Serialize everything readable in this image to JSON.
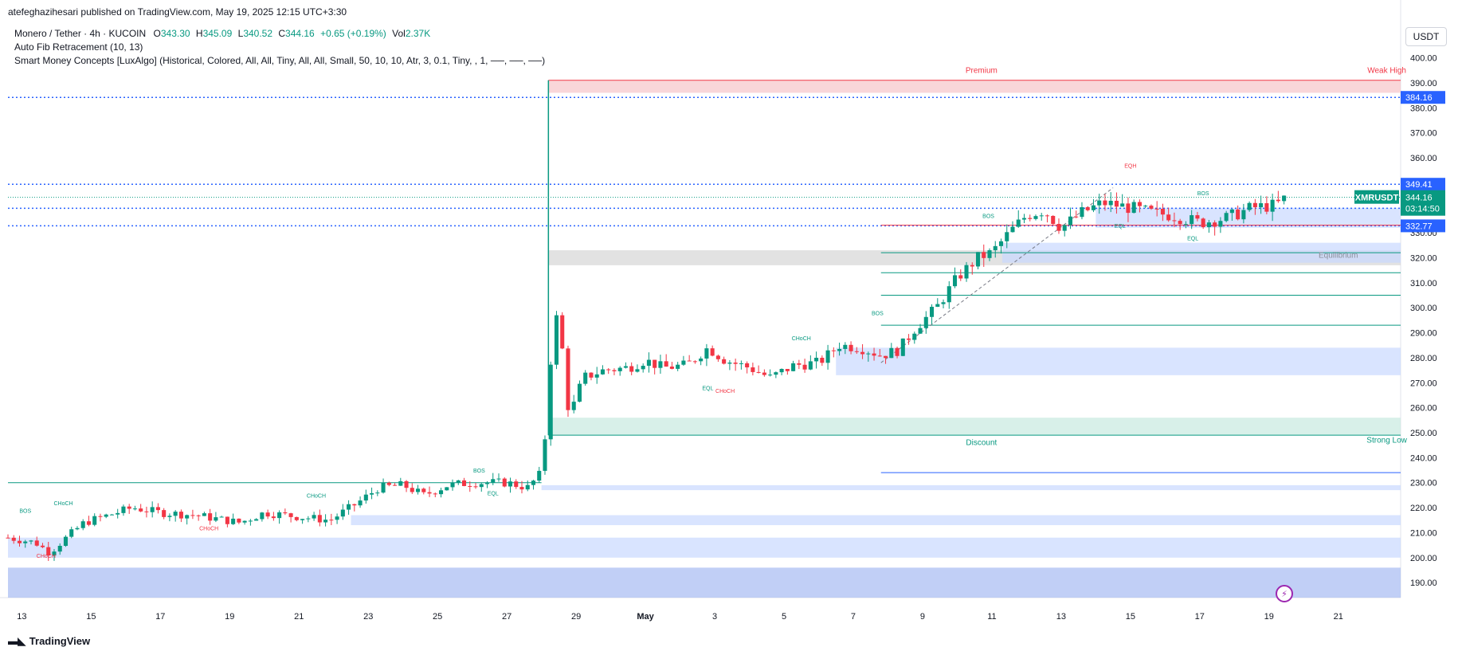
{
  "publisher_line": "atefeghazihesari published on TradingView.com, May 19, 2025 12:15 UTC+3:30",
  "legend": {
    "symbol": "Monero / Tether · 4h · KUCOIN",
    "o_label": "O",
    "o_value": "343.30",
    "h_label": "H",
    "h_value": "345.09",
    "l_label": "L",
    "l_value": "340.52",
    "c_label": "C",
    "c_value": "344.16",
    "change": "+0.65 (+0.19%)",
    "vol_label": "Vol",
    "vol_value": "2.37K",
    "indicator1": "Auto Fib Retracement (10, 13)",
    "indicator2": "Smart Money Concepts [LuxAlgo] (Historical, Colored, All, All, Tiny, All, All, Small, 50, 10, 10, Atr, 3, 0.1, Tiny, , 1, ──, ──, ──)"
  },
  "currency": "USDT",
  "footer_logo": "TradingView",
  "colors": {
    "up": "#089981",
    "down": "#f23645",
    "blue_line": "#2962ff",
    "zone_blue": "#c9d8ff",
    "zone_red": "#f7c5c9",
    "zone_green": "#c8eadf",
    "zone_grey": "#d6d6d6"
  },
  "chart_data": {
    "type": "candlestick",
    "symbol": "XMRUSDT",
    "timeframe": "4h",
    "ylim": [
      184,
      404
    ],
    "y_ticks": [
      190,
      200,
      210,
      220,
      230,
      240,
      250,
      260,
      270,
      280,
      290,
      300,
      310,
      320,
      330,
      340,
      350,
      360,
      370,
      380,
      390,
      400
    ],
    "x_domain": [
      12.6,
      52.8
    ],
    "x_ticks": [
      {
        "x": 13,
        "label": "13"
      },
      {
        "x": 15,
        "label": "15"
      },
      {
        "x": 17,
        "label": "17"
      },
      {
        "x": 19,
        "label": "19"
      },
      {
        "x": 21,
        "label": "21"
      },
      {
        "x": 23,
        "label": "23"
      },
      {
        "x": 25,
        "label": "25"
      },
      {
        "x": 27,
        "label": "27"
      },
      {
        "x": 29,
        "label": "29"
      },
      {
        "x": 31,
        "label": "May"
      },
      {
        "x": 33,
        "label": "3"
      },
      {
        "x": 35,
        "label": "5"
      },
      {
        "x": 37,
        "label": "7"
      },
      {
        "x": 39,
        "label": "9"
      },
      {
        "x": 41,
        "label": "11"
      },
      {
        "x": 43,
        "label": "13"
      },
      {
        "x": 45,
        "label": "15"
      },
      {
        "x": 47,
        "label": "17"
      },
      {
        "x": 49,
        "label": "19"
      },
      {
        "x": 51,
        "label": "21"
      }
    ],
    "keypoints": [
      [
        12.6,
        208
      ],
      [
        13.4,
        206
      ],
      [
        13.8,
        202
      ],
      [
        14.2,
        207
      ],
      [
        14.8,
        214
      ],
      [
        15.5,
        217
      ],
      [
        16.2,
        220
      ],
      [
        17.0,
        218
      ],
      [
        18.0,
        217
      ],
      [
        19.3,
        214
      ],
      [
        20.0,
        218
      ],
      [
        21.2,
        216
      ],
      [
        21.9,
        215
      ],
      [
        22.7,
        222
      ],
      [
        23.3,
        228
      ],
      [
        24.0,
        229
      ],
      [
        24.6,
        225
      ],
      [
        25.3,
        229
      ],
      [
        26.0,
        230
      ],
      [
        27.0,
        230
      ],
      [
        27.6,
        228
      ],
      [
        28.0,
        234
      ],
      [
        28.2,
        262
      ],
      [
        28.35,
        300
      ],
      [
        28.55,
        290
      ],
      [
        28.8,
        256
      ],
      [
        29.2,
        272
      ],
      [
        29.8,
        275
      ],
      [
        30.5,
        276
      ],
      [
        31.0,
        279
      ],
      [
        31.5,
        276
      ],
      [
        32.2,
        277
      ],
      [
        32.8,
        284
      ],
      [
        33.3,
        279
      ],
      [
        34.0,
        276
      ],
      [
        34.6,
        272
      ],
      [
        35.3,
        277
      ],
      [
        36.0,
        278
      ],
      [
        36.6,
        285
      ],
      [
        37.2,
        284
      ],
      [
        37.8,
        281
      ],
      [
        38.3,
        283
      ],
      [
        38.8,
        292
      ],
      [
        39.4,
        300
      ],
      [
        40.0,
        312
      ],
      [
        40.6,
        320
      ],
      [
        41.0,
        322
      ],
      [
        41.5,
        330
      ],
      [
        42.0,
        337
      ],
      [
        42.5,
        339
      ],
      [
        43.0,
        332
      ],
      [
        43.6,
        338
      ],
      [
        44.2,
        342
      ],
      [
        45.0,
        340
      ],
      [
        45.6,
        338
      ],
      [
        46.2,
        337
      ],
      [
        47.0,
        334
      ],
      [
        47.8,
        336
      ],
      [
        48.5,
        340
      ],
      [
        49.2,
        341
      ],
      [
        49.5,
        344.16
      ]
    ],
    "last": {
      "open": 343.3,
      "high": 345.09,
      "low": 340.52,
      "close": 344.16,
      "change": "+0.65 (+0.19%)",
      "volume": "2.37K"
    },
    "price_labels": [
      {
        "value": 384.16,
        "text": "384.16",
        "color": "#2962ff"
      },
      {
        "value": 349.41,
        "text": "349.41",
        "color": "#2962ff"
      },
      {
        "value": 339.78,
        "text": "339.78",
        "color": "#2962ff"
      },
      {
        "value": 332.77,
        "text": "332.77",
        "color": "#2962ff"
      }
    ],
    "current_price": {
      "value": 344.16,
      "symbol": "XMRUSDT",
      "price": "344.16",
      "countdown": "03:14:50",
      "color": "#089981"
    },
    "zones": [
      {
        "kind": "premium",
        "x0": 28.2,
        "x1": 52.8,
        "y0": 386,
        "y1": 391,
        "color": "#f7c5c9"
      },
      {
        "kind": "equilibrium",
        "x0": 28.2,
        "x1": 52.8,
        "y0": 317,
        "y1": 323,
        "color": "#d6d6d6"
      },
      {
        "kind": "discount",
        "x0": 28.2,
        "x1": 52.8,
        "y0": 249,
        "y1": 256,
        "color": "#c8eadf"
      },
      {
        "kind": "order-block",
        "x0": 41.3,
        "x1": 52.8,
        "y0": 318,
        "y1": 326,
        "color": "#c9d8ff"
      },
      {
        "kind": "order-block",
        "x0": 44.0,
        "x1": 52.8,
        "y0": 332,
        "y1": 340,
        "color": "#c9d8ff"
      },
      {
        "kind": "order-block",
        "x0": 36.5,
        "x1": 52.8,
        "y0": 273,
        "y1": 284,
        "color": "#c9d8ff"
      },
      {
        "kind": "order-block",
        "x0": 28.0,
        "x1": 52.8,
        "y0": 227,
        "y1": 229,
        "color": "#c9d8ff"
      },
      {
        "kind": "order-block",
        "x0": 22.5,
        "x1": 52.8,
        "y0": 213,
        "y1": 217,
        "color": "#c9d8ff"
      },
      {
        "kind": "order-block",
        "x0": 12.6,
        "x1": 52.8,
        "y0": 200,
        "y1": 208,
        "color": "#c9d8ff"
      },
      {
        "kind": "order-block",
        "x0": 12.6,
        "x1": 52.8,
        "y0": 184,
        "y1": 196,
        "color": "#a7bbf2"
      }
    ],
    "hlines": [
      {
        "value": 384.16,
        "x0": 12.6,
        "x1": 52.8,
        "style": "dotted",
        "color": "#2962ff"
      },
      {
        "value": 349.41,
        "x0": 12.6,
        "x1": 52.8,
        "style": "dotted",
        "color": "#2962ff"
      },
      {
        "value": 339.78,
        "x0": 12.6,
        "x1": 52.8,
        "style": "dotted",
        "color": "#2962ff"
      },
      {
        "value": 332.77,
        "x0": 12.6,
        "x1": 52.8,
        "style": "dotted",
        "color": "#2962ff"
      },
      {
        "value": 391,
        "x0": 28.2,
        "x1": 52.8,
        "style": "solid",
        "color": "#f23645"
      },
      {
        "value": 333,
        "x0": 37.8,
        "x1": 52.8,
        "style": "solid",
        "color": "#f23645"
      },
      {
        "value": 322,
        "x0": 37.8,
        "x1": 52.8,
        "style": "solid",
        "color": "#089981"
      },
      {
        "value": 314,
        "x0": 37.8,
        "x1": 52.8,
        "style": "solid",
        "color": "#089981"
      },
      {
        "value": 305,
        "x0": 37.8,
        "x1": 52.8,
        "style": "solid",
        "color": "#089981"
      },
      {
        "value": 293,
        "x0": 37.8,
        "x1": 52.8,
        "style": "solid",
        "color": "#089981"
      },
      {
        "value": 249,
        "x0": 28.2,
        "x1": 52.8,
        "style": "solid",
        "color": "#089981"
      },
      {
        "value": 234,
        "x0": 37.8,
        "x1": 52.8,
        "style": "solid",
        "color": "#2962ff"
      },
      {
        "value": 230,
        "x0": 12.6,
        "x1": 28.0,
        "style": "solid",
        "color": "#089981"
      }
    ],
    "vline_spike": {
      "x": 28.2,
      "y0": 249,
      "y1": 391,
      "color": "#089981"
    },
    "zone_labels": [
      {
        "text": "Premium",
        "x": 40.7,
        "y": 394,
        "color": "#f23645"
      },
      {
        "text": "Equilibrium",
        "x": 51.0,
        "y": 320,
        "color": "#8a8f99"
      },
      {
        "text": "Discount",
        "x": 40.7,
        "y": 245,
        "color": "#089981"
      },
      {
        "text": "Weak High",
        "x": 52.4,
        "y": 394,
        "color": "#f23645"
      },
      {
        "text": "Strong Low",
        "x": 52.4,
        "y": 246,
        "color": "#089981"
      }
    ],
    "structure_labels": [
      {
        "text": "BOS",
        "x": 13.1,
        "y": 218,
        "color": "#089981"
      },
      {
        "text": "CHoCH",
        "x": 14.2,
        "y": 221,
        "color": "#089981"
      },
      {
        "text": "CHoCH",
        "x": 13.7,
        "y": 200,
        "color": "#f23645"
      },
      {
        "text": "CHoCH",
        "x": 18.4,
        "y": 211,
        "color": "#f23645"
      },
      {
        "text": "CHoCH",
        "x": 21.5,
        "y": 224,
        "color": "#089981"
      },
      {
        "text": "BOS",
        "x": 26.2,
        "y": 234,
        "color": "#089981"
      },
      {
        "text": "EQL",
        "x": 26.6,
        "y": 225,
        "color": "#089981"
      },
      {
        "text": "EQL",
        "x": 32.8,
        "y": 267,
        "color": "#089981"
      },
      {
        "text": "CHoCH",
        "x": 33.3,
        "y": 266,
        "color": "#f23645"
      },
      {
        "text": "CHoCH",
        "x": 35.5,
        "y": 287,
        "color": "#089981"
      },
      {
        "text": "BOS",
        "x": 37.7,
        "y": 297,
        "color": "#089981"
      },
      {
        "text": "BOS",
        "x": 40.9,
        "y": 336,
        "color": "#089981"
      },
      {
        "text": "EQH",
        "x": 45.0,
        "y": 356,
        "color": "#f23645"
      },
      {
        "text": "BOS",
        "x": 47.1,
        "y": 345,
        "color": "#089981"
      },
      {
        "text": "EQL",
        "x": 44.7,
        "y": 332,
        "color": "#089981"
      },
      {
        "text": "EQL",
        "x": 46.8,
        "y": 327,
        "color": "#089981"
      }
    ]
  }
}
